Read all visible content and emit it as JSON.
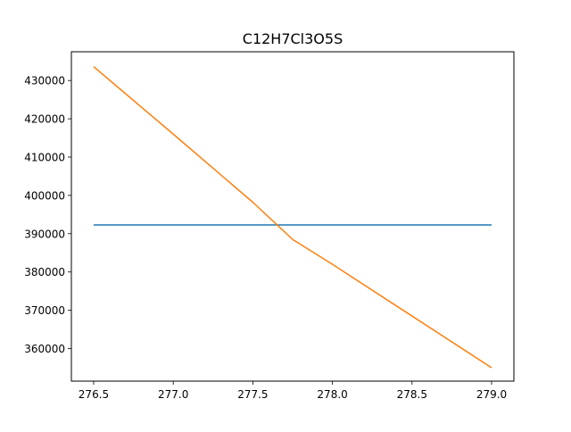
{
  "chart_data": {
    "type": "line",
    "title": "C12H7Cl3O5S",
    "xlabel": "",
    "ylabel": "",
    "xlim": [
      276.36,
      279.14
    ],
    "ylim": [
      351500,
      437500
    ],
    "x_ticks": [
      276.5,
      277.0,
      277.5,
      278.0,
      278.5,
      279.0
    ],
    "x_tick_labels": [
      "276.5",
      "277.0",
      "277.5",
      "278.0",
      "278.5",
      "279.0"
    ],
    "y_ticks": [
      360000,
      370000,
      380000,
      390000,
      400000,
      410000,
      420000,
      430000
    ],
    "y_tick_labels": [
      "360000",
      "370000",
      "380000",
      "390000",
      "400000",
      "410000",
      "420000",
      "430000"
    ],
    "grid": false,
    "series": [
      {
        "color": "#1f77b4",
        "x": [
          276.5,
          279.0
        ],
        "y": [
          392300,
          392300
        ]
      },
      {
        "color": "#ff7f0e",
        "x": [
          276.5,
          277.0,
          277.5,
          277.75,
          278.0,
          278.5,
          279.0
        ],
        "y": [
          433600,
          416000,
          398200,
          388500,
          382000,
          368500,
          355000
        ]
      }
    ]
  }
}
